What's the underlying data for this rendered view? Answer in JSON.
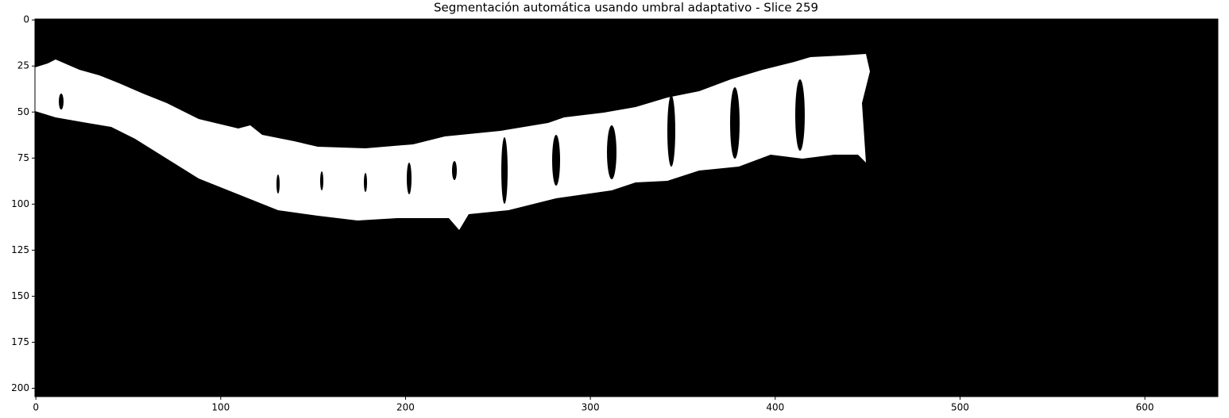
{
  "chart_data": {
    "type": "image",
    "title": "Segmentación automática usando umbral adaptativo - Slice 259",
    "xlim": [
      -0.5,
      639.5
    ],
    "ylim": [
      204.5,
      -0.5
    ],
    "xticks": [
      0,
      100,
      200,
      300,
      400,
      500,
      600
    ],
    "yticks": [
      0,
      25,
      50,
      75,
      100,
      125,
      150,
      175,
      200
    ]
  }
}
